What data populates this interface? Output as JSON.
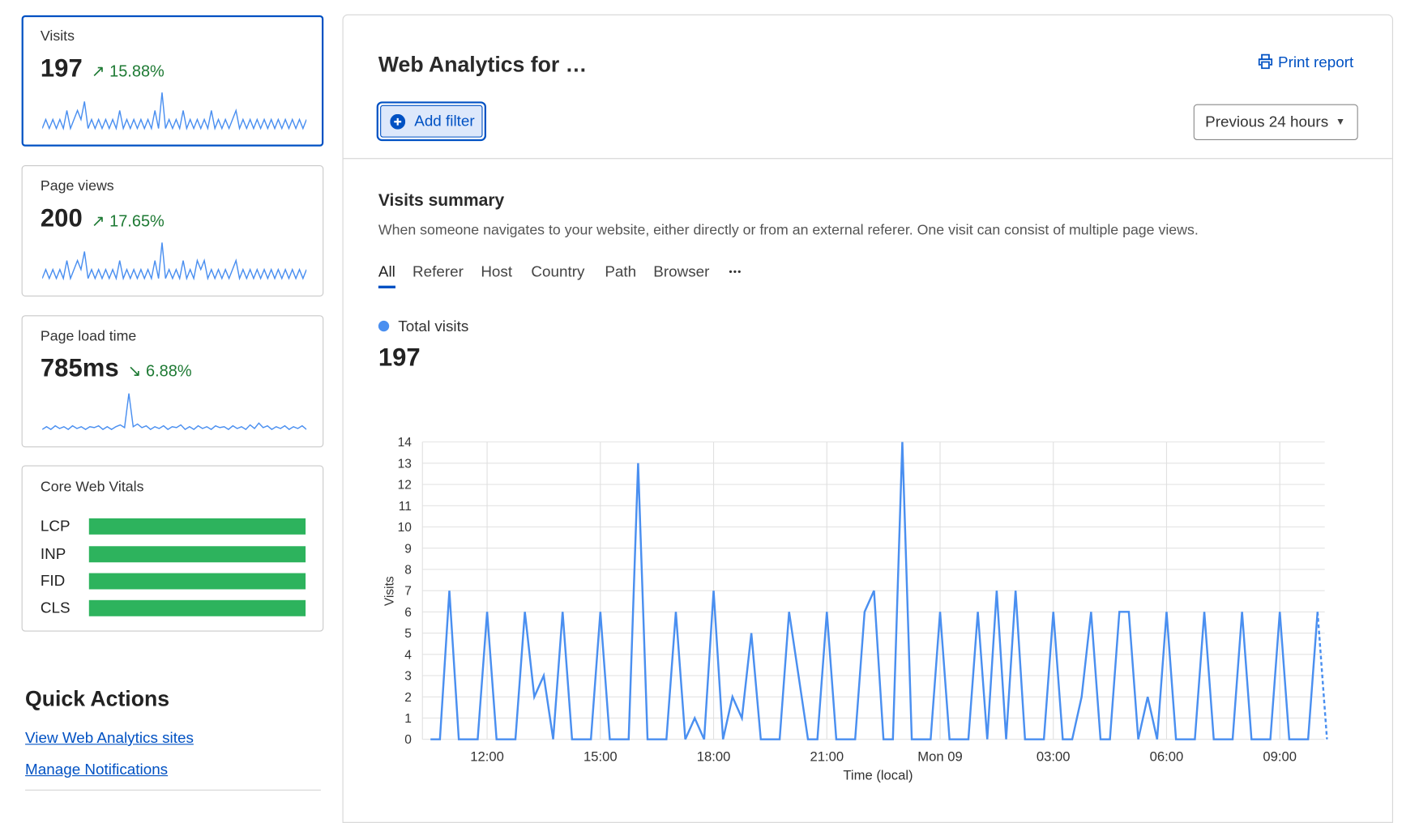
{
  "sidebar": {
    "cards": [
      {
        "label": "Visits",
        "value": "197",
        "delta": "15.88%",
        "trend": "up",
        "sparkline": [
          0,
          1,
          0,
          1,
          0,
          1,
          0,
          2,
          0,
          1,
          2,
          1,
          3,
          0,
          1,
          0,
          1,
          0,
          1,
          0,
          1,
          0,
          2,
          0,
          1,
          0,
          1,
          0,
          1,
          0,
          1,
          0,
          2,
          0,
          4,
          0,
          1,
          0,
          1,
          0,
          2,
          0,
          1,
          0,
          1,
          0,
          1,
          0,
          2,
          0,
          1,
          0,
          1,
          0,
          1,
          2,
          0,
          1,
          0,
          1,
          0,
          1,
          0,
          1,
          0,
          1,
          0,
          1,
          0,
          1,
          0,
          1,
          0,
          1,
          0,
          1
        ]
      },
      {
        "label": "Page views",
        "value": "200",
        "delta": "17.65%",
        "trend": "up",
        "sparkline": [
          0,
          1,
          0,
          1,
          0,
          1,
          0,
          2,
          0,
          1,
          2,
          1,
          3,
          0,
          1,
          0,
          1,
          0,
          1,
          0,
          1,
          0,
          2,
          0,
          1,
          0,
          1,
          0,
          1,
          0,
          1,
          0,
          2,
          0,
          4,
          0,
          1,
          0,
          1,
          0,
          2,
          0,
          1,
          0,
          2,
          1,
          2,
          0,
          1,
          0,
          1,
          0,
          1,
          0,
          1,
          2,
          0,
          1,
          0,
          1,
          0,
          1,
          0,
          1,
          0,
          1,
          0,
          1,
          0,
          1,
          0,
          1,
          0,
          1,
          0,
          1
        ]
      },
      {
        "label": "Page load time",
        "value": "785ms",
        "delta": "6.88%",
        "trend": "down",
        "sparkline": [
          0,
          0.3,
          0,
          0.4,
          0.1,
          0.3,
          0,
          0.4,
          0.1,
          0.3,
          0,
          0.3,
          0.2,
          0.4,
          0,
          0.3,
          0,
          0.3,
          0.5,
          0.2,
          4,
          0.3,
          0.6,
          0.2,
          0.4,
          0,
          0.3,
          0.1,
          0.4,
          0,
          0.3,
          0.2,
          0.5,
          0,
          0.3,
          0,
          0.4,
          0.1,
          0.3,
          0,
          0.4,
          0.2,
          0.3,
          0,
          0.4,
          0.1,
          0.3,
          0,
          0.5,
          0.1,
          0.7,
          0.2,
          0.4,
          0,
          0.3,
          0.1,
          0.4,
          0,
          0.3,
          0.1,
          0.4,
          0
        ]
      }
    ],
    "core_web_vitals": {
      "title": "Core Web Vitals",
      "metrics": [
        {
          "name": "LCP",
          "good_pct": 100
        },
        {
          "name": "INP",
          "good_pct": 100
        },
        {
          "name": "FID",
          "good_pct": 100
        },
        {
          "name": "CLS",
          "good_pct": 100
        }
      ]
    },
    "quick_actions": {
      "title": "Quick Actions",
      "links": [
        "View Web Analytics sites",
        "Manage Notifications"
      ]
    }
  },
  "header": {
    "title": "Web Analytics for …",
    "print_label": "Print report",
    "add_filter_label": "Add filter",
    "time_range": "Previous 24 hours"
  },
  "summary": {
    "title": "Visits summary",
    "description": "When someone navigates to your website, either directly or from an external referer. One visit can consist of multiple page views.",
    "tabs": [
      "All",
      "Referer",
      "Host",
      "Country",
      "Path",
      "Browser"
    ],
    "more_label": "•••",
    "legend_label": "Total visits",
    "total": "197"
  },
  "colors": {
    "accent": "#0051c3",
    "series": "#4a8ff0",
    "good": "#2db35d",
    "positive": "#1e7a34"
  },
  "chart_data": {
    "type": "line",
    "xlabel": "Time (local)",
    "ylabel": "Visits",
    "ylim": [
      0,
      14
    ],
    "yticks": [
      "0",
      "1",
      "2",
      "3",
      "4",
      "5",
      "6",
      "7",
      "8",
      "9",
      "10",
      "11",
      "12",
      "13",
      "14"
    ],
    "xticks": [
      {
        "at": "12:00",
        "label": "12:00"
      },
      {
        "at": "15:00",
        "label": "15:00"
      },
      {
        "at": "18:00",
        "label": "18:00"
      },
      {
        "at": "21:00",
        "label": "21:00"
      },
      {
        "at": "00:00",
        "label": "Mon 09"
      },
      {
        "at": "03:00",
        "label": "03:00"
      },
      {
        "at": "06:00",
        "label": "06:00"
      },
      {
        "at": "09:00",
        "label": "09:00"
      }
    ],
    "grid": true,
    "x": [
      "10:30",
      "10:45",
      "11:00",
      "11:15",
      "11:30",
      "11:45",
      "12:00",
      "12:15",
      "12:30",
      "12:45",
      "13:00",
      "13:15",
      "13:30",
      "13:45",
      "14:00",
      "14:15",
      "14:30",
      "14:45",
      "15:00",
      "15:15",
      "15:30",
      "15:45",
      "16:00",
      "16:15",
      "16:30",
      "16:45",
      "17:00",
      "17:15",
      "17:30",
      "17:45",
      "18:00",
      "18:15",
      "18:30",
      "18:45",
      "19:00",
      "19:15",
      "19:30",
      "19:45",
      "20:00",
      "20:15",
      "20:30",
      "20:45",
      "21:00",
      "21:15",
      "21:30",
      "21:45",
      "22:00",
      "22:15",
      "22:30",
      "22:45",
      "23:00",
      "23:15",
      "23:30",
      "23:45",
      "00:00",
      "00:15",
      "00:30",
      "00:45",
      "01:00",
      "01:15",
      "01:30",
      "01:45",
      "02:00",
      "02:15",
      "02:30",
      "02:45",
      "03:00",
      "03:15",
      "03:30",
      "03:45",
      "04:00",
      "04:15",
      "04:30",
      "04:45",
      "05:00",
      "05:15",
      "05:30",
      "05:45",
      "06:00",
      "06:15",
      "06:30",
      "06:45",
      "07:00",
      "07:15",
      "07:30",
      "07:45",
      "08:00",
      "08:15",
      "08:30",
      "08:45",
      "09:00",
      "09:15",
      "09:30",
      "09:45",
      "10:00",
      "10:15"
    ],
    "series": [
      {
        "name": "Total visits",
        "values": [
          0,
          0,
          7,
          0,
          0,
          0,
          6,
          0,
          0,
          0,
          6,
          2,
          3,
          0,
          6,
          0,
          0,
          0,
          6,
          0,
          0,
          0,
          13,
          0,
          0,
          0,
          6,
          0,
          1,
          0,
          7,
          0,
          2,
          1,
          5,
          0,
          0,
          0,
          6,
          3,
          0,
          0,
          6,
          0,
          0,
          0,
          6,
          7,
          0,
          0,
          14,
          0,
          0,
          0,
          6,
          0,
          0,
          0,
          6,
          0,
          7,
          0,
          7,
          0,
          0,
          0,
          6,
          0,
          0,
          2,
          6,
          0,
          0,
          6,
          6,
          0,
          2,
          0,
          6,
          0,
          0,
          0,
          6,
          0,
          0,
          0,
          6,
          0,
          0,
          0,
          6,
          0,
          0,
          0,
          6,
          0
        ]
      }
    ],
    "last_segment": "dashed"
  }
}
